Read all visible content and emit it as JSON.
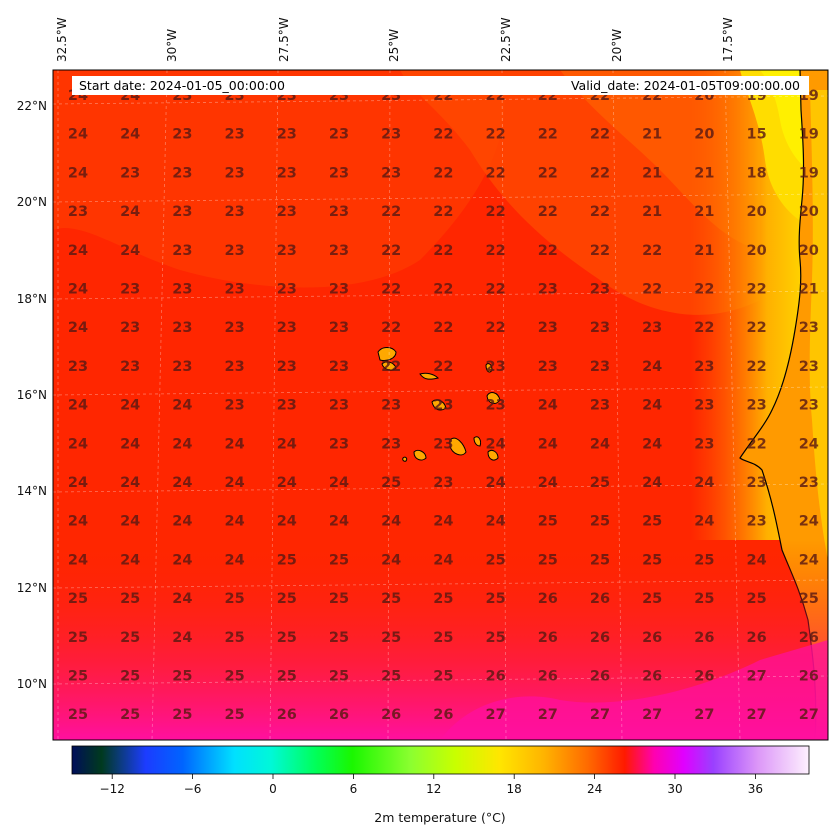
{
  "header": {
    "start_label": "Start date: 2024-01-05_00:00:00",
    "valid_label": "Valid_date: 2024-01-05T09:00:00.00"
  },
  "lon_labels": [
    "32.5°W",
    "30°W",
    "27.5°W",
    "25°W",
    "22.5°W",
    "20°W",
    "17.5°W"
  ],
  "lat_labels": [
    "22°N",
    "20°N",
    "18°N",
    "16°N",
    "14°N",
    "12°N",
    "10°N"
  ],
  "colorbar": {
    "label": "2m temperature ($^\\circ$C)",
    "label_display": "2m temperature (°C)",
    "ticks": [
      -12,
      -6,
      0,
      6,
      12,
      18,
      24,
      30,
      36
    ],
    "range": [
      -15,
      40
    ],
    "colormap": "gist_ncar"
  },
  "colors": {
    "ocean_warm": "#ff2200",
    "ocean_mid": "#ff5a00",
    "coast_yellow": "#ffe600",
    "south_magenta": "#ff1a9a",
    "coastline": "#000000",
    "value_text": "#5a1a12"
  },
  "chart_data": {
    "type": "heatmap",
    "variable": "2m temperature",
    "units": "°C",
    "grid_values": [
      [
        "24",
        "24",
        "23",
        "23",
        "23",
        "23",
        "23",
        "22",
        "22",
        "22",
        "22",
        "22",
        "20",
        "19",
        "19"
      ],
      [
        "24",
        "24",
        "23",
        "23",
        "23",
        "23",
        "23",
        "22",
        "22",
        "22",
        "22",
        "21",
        "20",
        "15",
        "19"
      ],
      [
        "24",
        "23",
        "23",
        "23",
        "23",
        "23",
        "23",
        "22",
        "22",
        "22",
        "22",
        "21",
        "21",
        "18",
        "19"
      ],
      [
        "23",
        "24",
        "23",
        "23",
        "23",
        "23",
        "22",
        "22",
        "22",
        "22",
        "22",
        "21",
        "21",
        "20",
        "20"
      ],
      [
        "24",
        "24",
        "23",
        "23",
        "23",
        "23",
        "22",
        "22",
        "22",
        "22",
        "22",
        "22",
        "21",
        "20",
        "20"
      ],
      [
        "24",
        "23",
        "23",
        "23",
        "23",
        "23",
        "22",
        "22",
        "22",
        "23",
        "23",
        "22",
        "22",
        "22",
        "21"
      ],
      [
        "24",
        "23",
        "23",
        "23",
        "23",
        "23",
        "22",
        "22",
        "22",
        "23",
        "23",
        "23",
        "22",
        "22",
        "23"
      ],
      [
        "23",
        "23",
        "23",
        "23",
        "23",
        "23",
        "22",
        "22",
        "23",
        "23",
        "23",
        "24",
        "23",
        "22",
        "23"
      ],
      [
        "24",
        "24",
        "24",
        "23",
        "23",
        "23",
        "23",
        "23",
        "23",
        "24",
        "23",
        "24",
        "23",
        "23",
        "23"
      ],
      [
        "24",
        "24",
        "24",
        "24",
        "24",
        "23",
        "23",
        "23",
        "24",
        "24",
        "24",
        "24",
        "23",
        "22",
        "24"
      ],
      [
        "24",
        "24",
        "24",
        "24",
        "24",
        "24",
        "25",
        "23",
        "24",
        "24",
        "25",
        "24",
        "24",
        "23",
        "23"
      ],
      [
        "24",
        "24",
        "24",
        "24",
        "24",
        "24",
        "24",
        "24",
        "24",
        "25",
        "25",
        "25",
        "24",
        "23",
        "24"
      ],
      [
        "24",
        "24",
        "24",
        "24",
        "25",
        "25",
        "24",
        "24",
        "25",
        "25",
        "25",
        "25",
        "25",
        "24",
        "24"
      ],
      [
        "25",
        "25",
        "24",
        "25",
        "25",
        "25",
        "25",
        "25",
        "25",
        "26",
        "26",
        "25",
        "25",
        "25",
        "25"
      ],
      [
        "25",
        "25",
        "24",
        "25",
        "25",
        "25",
        "25",
        "25",
        "25",
        "26",
        "26",
        "26",
        "26",
        "26",
        "26"
      ],
      [
        "25",
        "25",
        "25",
        "25",
        "25",
        "25",
        "25",
        "25",
        "26",
        "26",
        "26",
        "26",
        "26",
        "27",
        "26"
      ],
      [
        "25",
        "25",
        "25",
        "25",
        "26",
        "26",
        "26",
        "26",
        "27",
        "27",
        "27",
        "27",
        "27",
        "27",
        "27"
      ]
    ]
  }
}
